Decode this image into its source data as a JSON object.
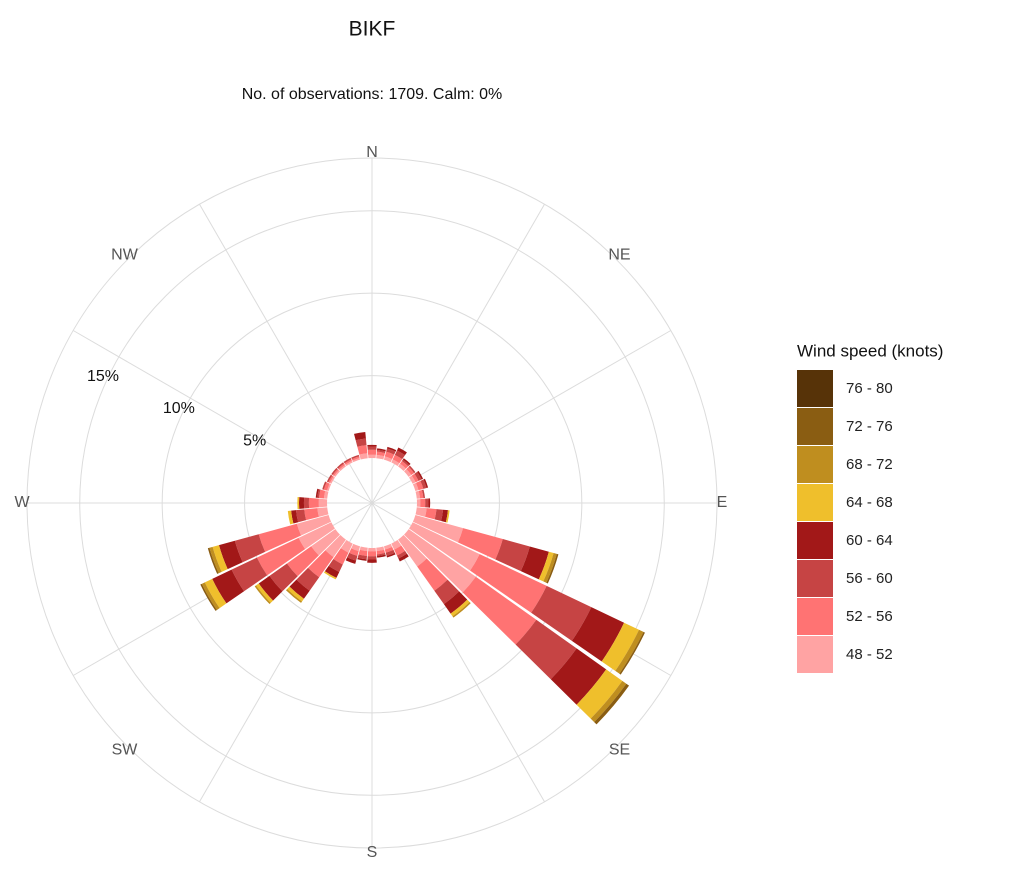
{
  "chart_data": {
    "type": "windrose",
    "title": "BIKF",
    "subtitle": "No. of observations: 1709. Calm: 0%",
    "compass_labels": [
      "N",
      "NE",
      "E",
      "SE",
      "S",
      "SW",
      "W",
      "NW"
    ],
    "x": [
      0,
      10,
      20,
      30,
      40,
      50,
      60,
      70,
      80,
      90,
      100,
      110,
      120,
      130,
      140,
      150,
      160,
      170,
      180,
      190,
      200,
      210,
      220,
      230,
      240,
      250,
      260,
      270,
      280,
      290,
      300,
      310,
      320,
      330,
      340,
      350
    ],
    "rlim": [
      0,
      18.2
    ],
    "rticks": [
      {
        "value": 5,
        "label": "5%"
      },
      {
        "value": 10,
        "label": "10%"
      },
      {
        "value": 15,
        "label": "15%"
      }
    ],
    "grid": true,
    "legend_title": "Wind speed (knots)",
    "legend_position": "right",
    "series": [
      {
        "name": "48 - 52",
        "color": "#ffa3a3",
        "values": [
          0.2,
          0.2,
          0.2,
          0.2,
          0.2,
          0.2,
          0.2,
          0.2,
          0.2,
          0.2,
          0.6,
          3.0,
          4.5,
          5.0,
          2.0,
          0.4,
          0.2,
          0.2,
          0.2,
          0.2,
          0.3,
          0.6,
          1.3,
          1.8,
          2.2,
          2.0,
          0.6,
          0.5,
          0.2,
          0.1,
          0.1,
          0.1,
          0.1,
          0.1,
          0.1,
          0.3
        ]
      },
      {
        "name": "52 - 56",
        "color": "#ff7373",
        "values": [
          0.3,
          0.2,
          0.3,
          0.3,
          0.2,
          0.2,
          0.2,
          0.3,
          0.2,
          0.3,
          0.6,
          2.5,
          4.5,
          4.5,
          1.8,
          0.4,
          0.2,
          0.2,
          0.3,
          0.3,
          0.3,
          0.8,
          1.5,
          1.8,
          2.8,
          2.4,
          0.8,
          0.6,
          0.3,
          0.2,
          0.1,
          0.1,
          0.1,
          0.1,
          0.1,
          0.5
        ]
      },
      {
        "name": "56 - 60",
        "color": "#c64444",
        "values": [
          0.2,
          0.1,
          0.2,
          0.3,
          0.1,
          0.1,
          0.2,
          0.2,
          0.1,
          0.2,
          0.4,
          1.7,
          3.0,
          3.0,
          1.0,
          0.2,
          0.2,
          0.1,
          0.2,
          0.2,
          0.3,
          0.5,
          1.0,
          1.3,
          1.7,
          1.5,
          0.5,
          0.3,
          0.1,
          0.1,
          0.1,
          0.1,
          0.1,
          0.1,
          0.1,
          0.4
        ]
      },
      {
        "name": "60 - 64",
        "color": "#a21818",
        "values": [
          0.1,
          0.1,
          0.1,
          0.2,
          0.1,
          0,
          0.1,
          0.1,
          0,
          0.1,
          0.3,
          1.2,
          2.2,
          2.2,
          0.7,
          0.2,
          0.1,
          0.1,
          0.2,
          0.1,
          0.2,
          0.4,
          0.6,
          0.8,
          1.3,
          1.0,
          0.3,
          0.3,
          0.1,
          0,
          0,
          0,
          0,
          0,
          0,
          0.4
        ]
      },
      {
        "name": "64 - 68",
        "color": "#efbf2c",
        "values": [
          0,
          0,
          0,
          0,
          0,
          0,
          0,
          0,
          0,
          0,
          0.1,
          0.3,
          1.0,
          1.2,
          0.2,
          0,
          0,
          0,
          0,
          0,
          0,
          0.1,
          0.2,
          0.2,
          0.5,
          0.4,
          0.2,
          0.1,
          0,
          0,
          0,
          0,
          0,
          0,
          0,
          0
        ]
      },
      {
        "name": "68 - 72",
        "color": "#bf8e1f",
        "values": [
          0,
          0,
          0,
          0,
          0,
          0,
          0,
          0,
          0,
          0,
          0,
          0.2,
          0.3,
          0.3,
          0.1,
          0,
          0,
          0,
          0,
          0,
          0,
          0,
          0.1,
          0.1,
          0.2,
          0.2,
          0,
          0,
          0,
          0,
          0,
          0,
          0,
          0,
          0,
          0
        ]
      },
      {
        "name": "72 - 76",
        "color": "#8a5d12",
        "values": [
          0,
          0,
          0,
          0,
          0,
          0,
          0,
          0,
          0,
          0,
          0,
          0.1,
          0.1,
          0.2,
          0,
          0,
          0,
          0,
          0,
          0,
          0,
          0,
          0,
          0,
          0.1,
          0.1,
          0,
          0,
          0,
          0,
          0,
          0,
          0,
          0,
          0,
          0
        ]
      },
      {
        "name": "76 - 80",
        "color": "#573308",
        "values": [
          0,
          0,
          0,
          0,
          0,
          0,
          0,
          0,
          0,
          0,
          0,
          0,
          0,
          0,
          0,
          0,
          0,
          0,
          0,
          0,
          0,
          0,
          0,
          0,
          0,
          0,
          0,
          0,
          0,
          0,
          0,
          0,
          0,
          0,
          0,
          0
        ]
      }
    ]
  }
}
